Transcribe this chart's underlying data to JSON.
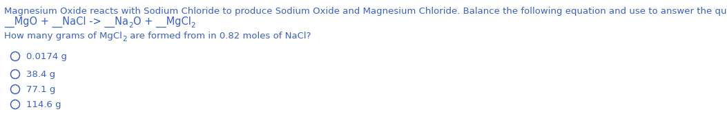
{
  "bg_color": "#ffffff",
  "text_color": "#3a5fcd",
  "header_text": "Magnesium Oxide reacts with Sodium Chloride to produce Sodium Oxide and Magnesium Chloride. Balance the following equation and use to answer the question that follows.",
  "eq_part1": "__MgO + __NaCl -> __Na",
  "eq_sub1": "2",
  "eq_part2": "O + __MgCl",
  "eq_sub2": "2",
  "q_part1": "How many grams of MgCl",
  "q_sub": "2",
  "q_part2": " are formed from in 0.82 moles of NaCl?",
  "choices": [
    "0.0174 g",
    "38.4 g",
    "77.1 g",
    "114.6 g"
  ],
  "fontsize": 9.5,
  "eq_fontsize": 10.5,
  "sub_fontsize": 7.5,
  "fig_width": 10.53,
  "fig_height": 1.82,
  "dpi": 100
}
